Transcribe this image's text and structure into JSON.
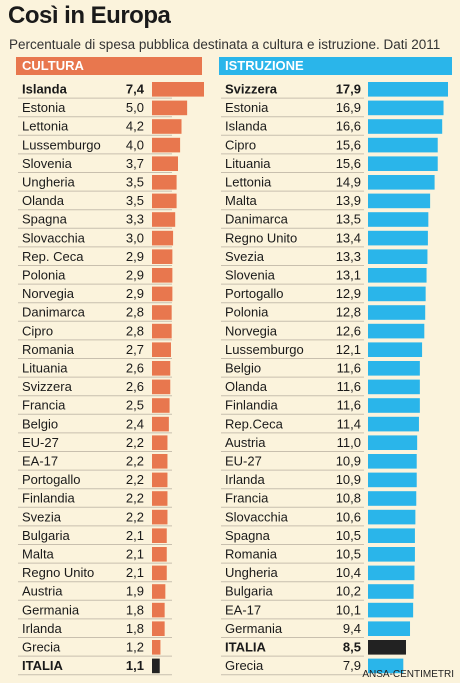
{
  "title": "Così in Europa",
  "subtitle": "Percentuale di spesa pubblica destinata a cultura e istruzione. Dati 2011",
  "credit": "ANSA-CENTIMETRI",
  "colors": {
    "cultura": "#e8774e",
    "istruzione": "#2ab5ea",
    "italia": "#222222",
    "row_line": "#c8bfae"
  },
  "chart_data": [
    {
      "type": "bar",
      "title": "CULTURA",
      "categories": [
        "Islanda",
        "Estonia",
        "Lettonia",
        "Lussemburgo",
        "Slovenia",
        "Ungheria",
        "Olanda",
        "Spagna",
        "Slovacchia",
        "Rep. Ceca",
        "Polonia",
        "Norvegia",
        "Danimarca",
        "Cipro",
        "Romania",
        "Lituania",
        "Svizzera",
        "Francia",
        "Belgio",
        "EU-27",
        "EA-17",
        "Portogallo",
        "Finlandia",
        "Svezia",
        "Bulgaria",
        "Malta",
        "Regno Unito",
        "Austria",
        "Germania",
        "Irlanda",
        "Grecia",
        "ITALIA"
      ],
      "values": [
        7.4,
        5.0,
        4.2,
        4.0,
        3.7,
        3.5,
        3.5,
        3.3,
        3.0,
        2.9,
        2.9,
        2.9,
        2.8,
        2.8,
        2.7,
        2.6,
        2.6,
        2.5,
        2.4,
        2.2,
        2.2,
        2.2,
        2.2,
        2.2,
        2.1,
        2.1,
        2.1,
        1.9,
        1.8,
        1.8,
        1.2,
        1.1
      ],
      "value_labels": [
        "7,4",
        "5,0",
        "4,2",
        "4,0",
        "3,7",
        "3,5",
        "3,5",
        "3,3",
        "3,0",
        "2,9",
        "2,9",
        "2,9",
        "2,8",
        "2,8",
        "2,7",
        "2,6",
        "2,6",
        "2,5",
        "2,4",
        "2,2",
        "2,2",
        "2,2",
        "2,2",
        "2,2",
        "2,1",
        "2,1",
        "2,1",
        "1,9",
        "1,8",
        "1,8",
        "1,2",
        "1,1"
      ],
      "bold": [
        "Islanda",
        "ITALIA"
      ],
      "highlight": "ITALIA",
      "orientation": "horizontal"
    },
    {
      "type": "bar",
      "title": "ISTRUZIONE",
      "categories": [
        "Svizzera",
        "Estonia",
        "Islanda",
        "Cipro",
        "Lituania",
        "Lettonia",
        "Malta",
        "Danimarca",
        "Regno Unito",
        "Svezia",
        "Slovenia",
        "Portogallo",
        "Polonia",
        "Norvegia",
        "Lussemburgo",
        "Belgio",
        "Olanda",
        "Finlandia",
        "Rep.Ceca",
        "Austria",
        "EU-27",
        "Irlanda",
        "Francia",
        "Slovacchia",
        "Spagna",
        "Romania",
        "Ungheria",
        "Bulgaria",
        "EA-17",
        "Germania",
        "ITALIA",
        "Grecia"
      ],
      "values": [
        17.9,
        16.9,
        16.6,
        15.6,
        15.6,
        14.9,
        13.9,
        13.5,
        13.4,
        13.3,
        13.1,
        12.9,
        12.8,
        12.6,
        12.1,
        11.6,
        11.6,
        11.6,
        11.4,
        11.0,
        10.9,
        10.9,
        10.8,
        10.6,
        10.5,
        10.5,
        10.4,
        10.2,
        10.1,
        9.4,
        8.5,
        7.9
      ],
      "value_labels": [
        "17,9",
        "16,9",
        "16,6",
        "15,6",
        "15,6",
        "14,9",
        "13,9",
        "13,5",
        "13,4",
        "13,3",
        "13,1",
        "12,9",
        "12,8",
        "12,6",
        "12,1",
        "11,6",
        "11,6",
        "11,6",
        "11,4",
        "11,0",
        "10,9",
        "10,9",
        "10,8",
        "10,6",
        "10,5",
        "10,5",
        "10,4",
        "10,2",
        "10,1",
        "9,4",
        "8,5",
        "7,9"
      ],
      "bold": [
        "Svizzera",
        "ITALIA"
      ],
      "highlight": "ITALIA",
      "orientation": "horizontal"
    }
  ]
}
